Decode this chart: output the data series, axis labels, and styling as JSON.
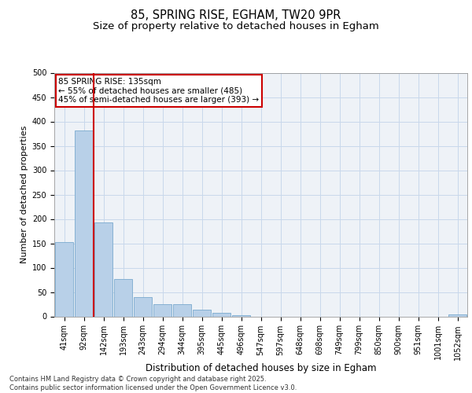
{
  "title_line1": "85, SPRING RISE, EGHAM, TW20 9PR",
  "title_line2": "Size of property relative to detached houses in Egham",
  "xlabel": "Distribution of detached houses by size in Egham",
  "ylabel": "Number of detached properties",
  "bar_labels": [
    "41sqm",
    "92sqm",
    "142sqm",
    "193sqm",
    "243sqm",
    "294sqm",
    "344sqm",
    "395sqm",
    "445sqm",
    "496sqm",
    "547sqm",
    "597sqm",
    "648sqm",
    "698sqm",
    "749sqm",
    "799sqm",
    "850sqm",
    "900sqm",
    "951sqm",
    "1001sqm",
    "1052sqm"
  ],
  "bar_values": [
    152,
    382,
    193,
    76,
    39,
    25,
    25,
    14,
    7,
    3,
    0,
    0,
    0,
    0,
    0,
    0,
    0,
    0,
    0,
    0,
    4
  ],
  "bar_color": "#b8d0e8",
  "bar_edge_color": "#7aaace",
  "bar_edge_width": 0.6,
  "vline_color": "#cc0000",
  "vline_x_index": 1.5,
  "annotation_text": "85 SPRING RISE: 135sqm\n← 55% of detached houses are smaller (485)\n45% of semi-detached houses are larger (393) →",
  "annotation_box_color": "#cc0000",
  "ylim": [
    0,
    500
  ],
  "yticks": [
    0,
    50,
    100,
    150,
    200,
    250,
    300,
    350,
    400,
    450,
    500
  ],
  "grid_color": "#c8d8eb",
  "background_color": "#eef2f7",
  "footer_text": "Contains HM Land Registry data © Crown copyright and database right 2025.\nContains public sector information licensed under the Open Government Licence v3.0.",
  "title_fontsize": 10.5,
  "subtitle_fontsize": 9.5,
  "tick_fontsize": 7,
  "xlabel_fontsize": 8.5,
  "ylabel_fontsize": 8,
  "annotation_fontsize": 7.5,
  "footer_fontsize": 6
}
